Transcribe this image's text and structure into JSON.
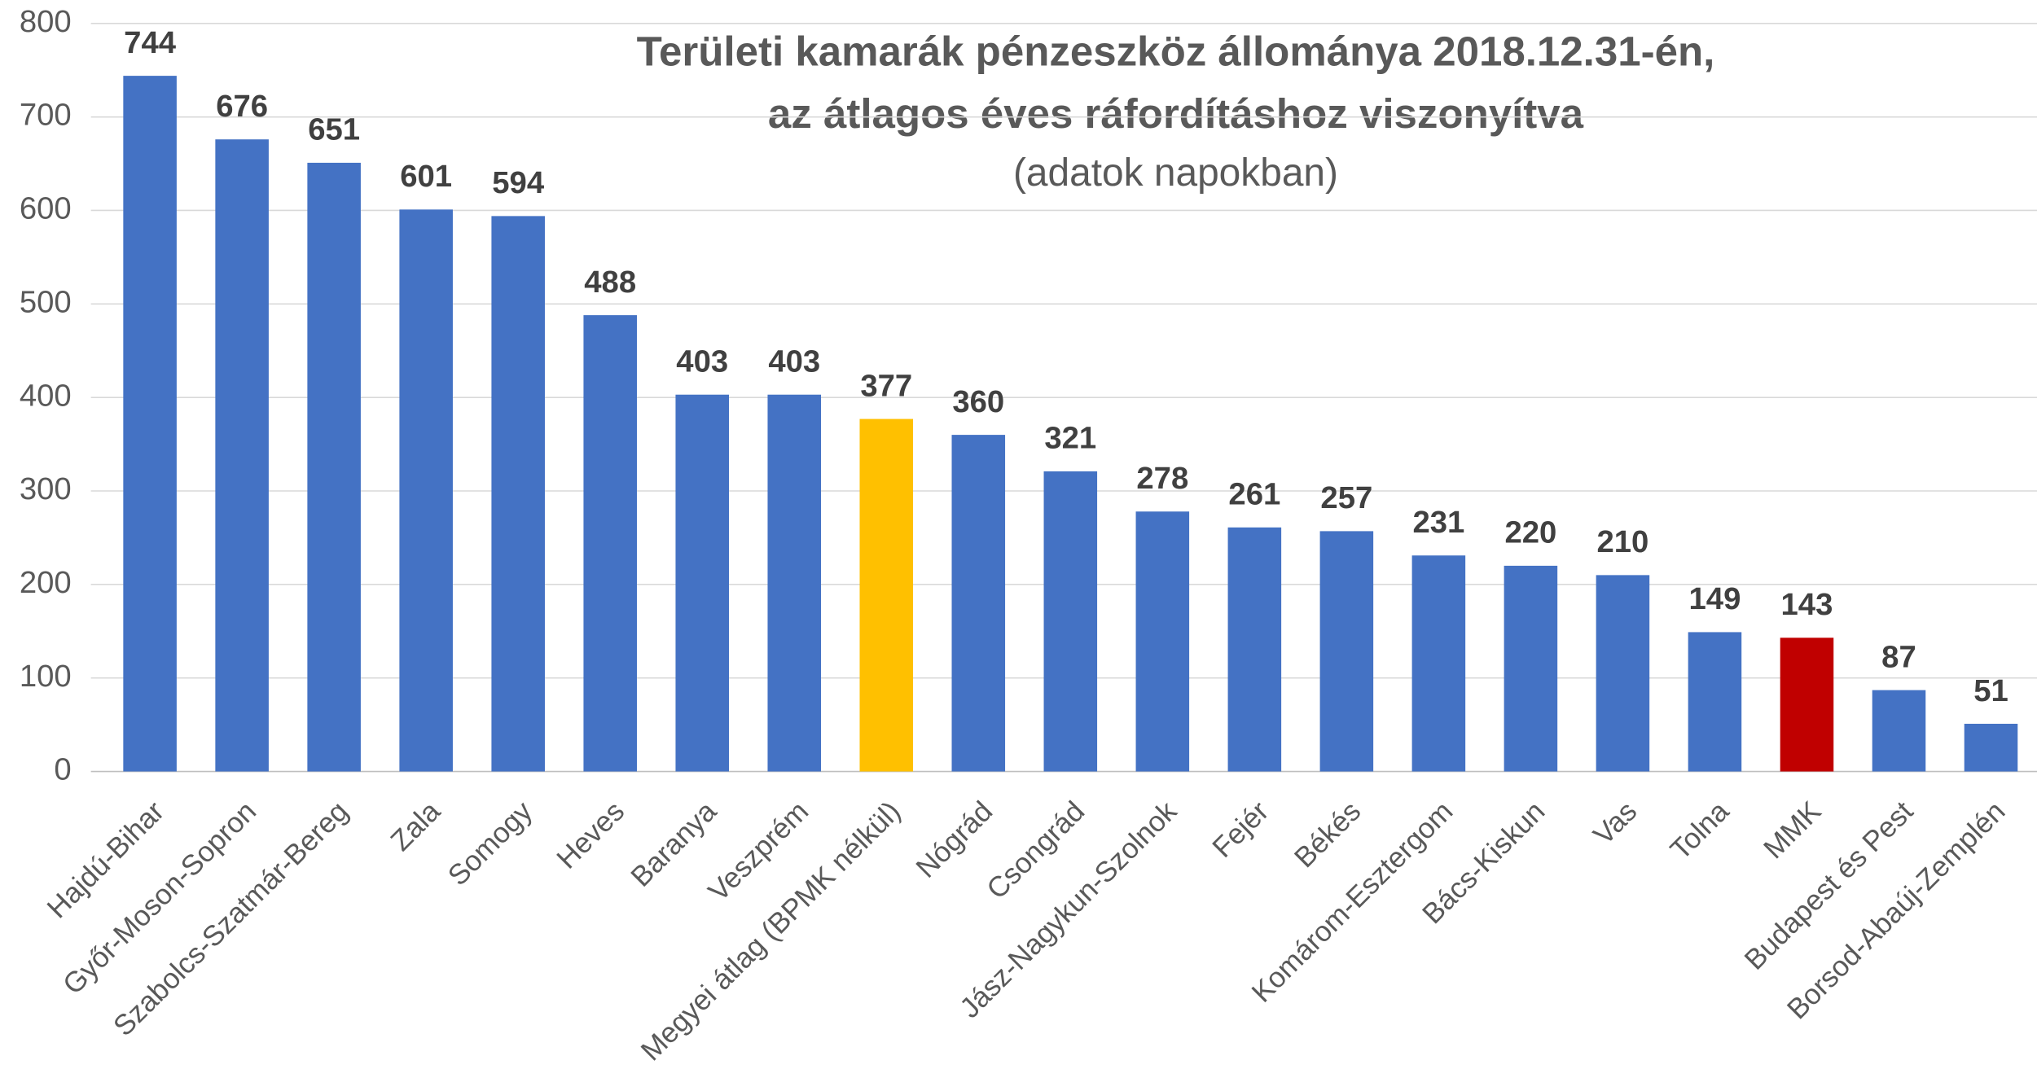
{
  "chart_data": {
    "type": "bar",
    "title": [
      "Területi kamarák pénzeszköz állománya 2018.12.31-én,",
      "az átlagos éves ráfordításhoz viszonyítva"
    ],
    "subtitle": "(adatok napokban)",
    "categories": [
      "Hajdú-Bihar",
      "Győr-Moson-Sopron",
      "Szabolcs-Szatmár-Bereg",
      "Zala",
      "Somogy",
      "Heves",
      "Baranya",
      "Veszprém",
      "Megyei átlag (BPMK nélkül)",
      "Nógrád",
      "Csongrád",
      "Jász-Nagykun-Szolnok",
      "Fejér",
      "Békés",
      "Komárom-Esztergom",
      "Bács-Kiskun",
      "Vas",
      "Tolna",
      "MMK",
      "Budapest és Pest",
      "Borsod-Abaúj-Zemplén"
    ],
    "values": [
      744,
      676,
      651,
      601,
      594,
      488,
      403,
      403,
      377,
      360,
      321,
      278,
      261,
      257,
      231,
      220,
      210,
      149,
      143,
      87,
      51
    ],
    "colors": [
      "#4472c4",
      "#4472c4",
      "#4472c4",
      "#4472c4",
      "#4472c4",
      "#4472c4",
      "#4472c4",
      "#4472c4",
      "#ffc000",
      "#4472c4",
      "#4472c4",
      "#4472c4",
      "#4472c4",
      "#4472c4",
      "#4472c4",
      "#4472c4",
      "#4472c4",
      "#4472c4",
      "#c00000",
      "#4472c4",
      "#4472c4"
    ],
    "ylim": [
      0,
      800
    ],
    "yticks": [
      0,
      100,
      200,
      300,
      400,
      500,
      600,
      700,
      800
    ],
    "grid": true
  }
}
